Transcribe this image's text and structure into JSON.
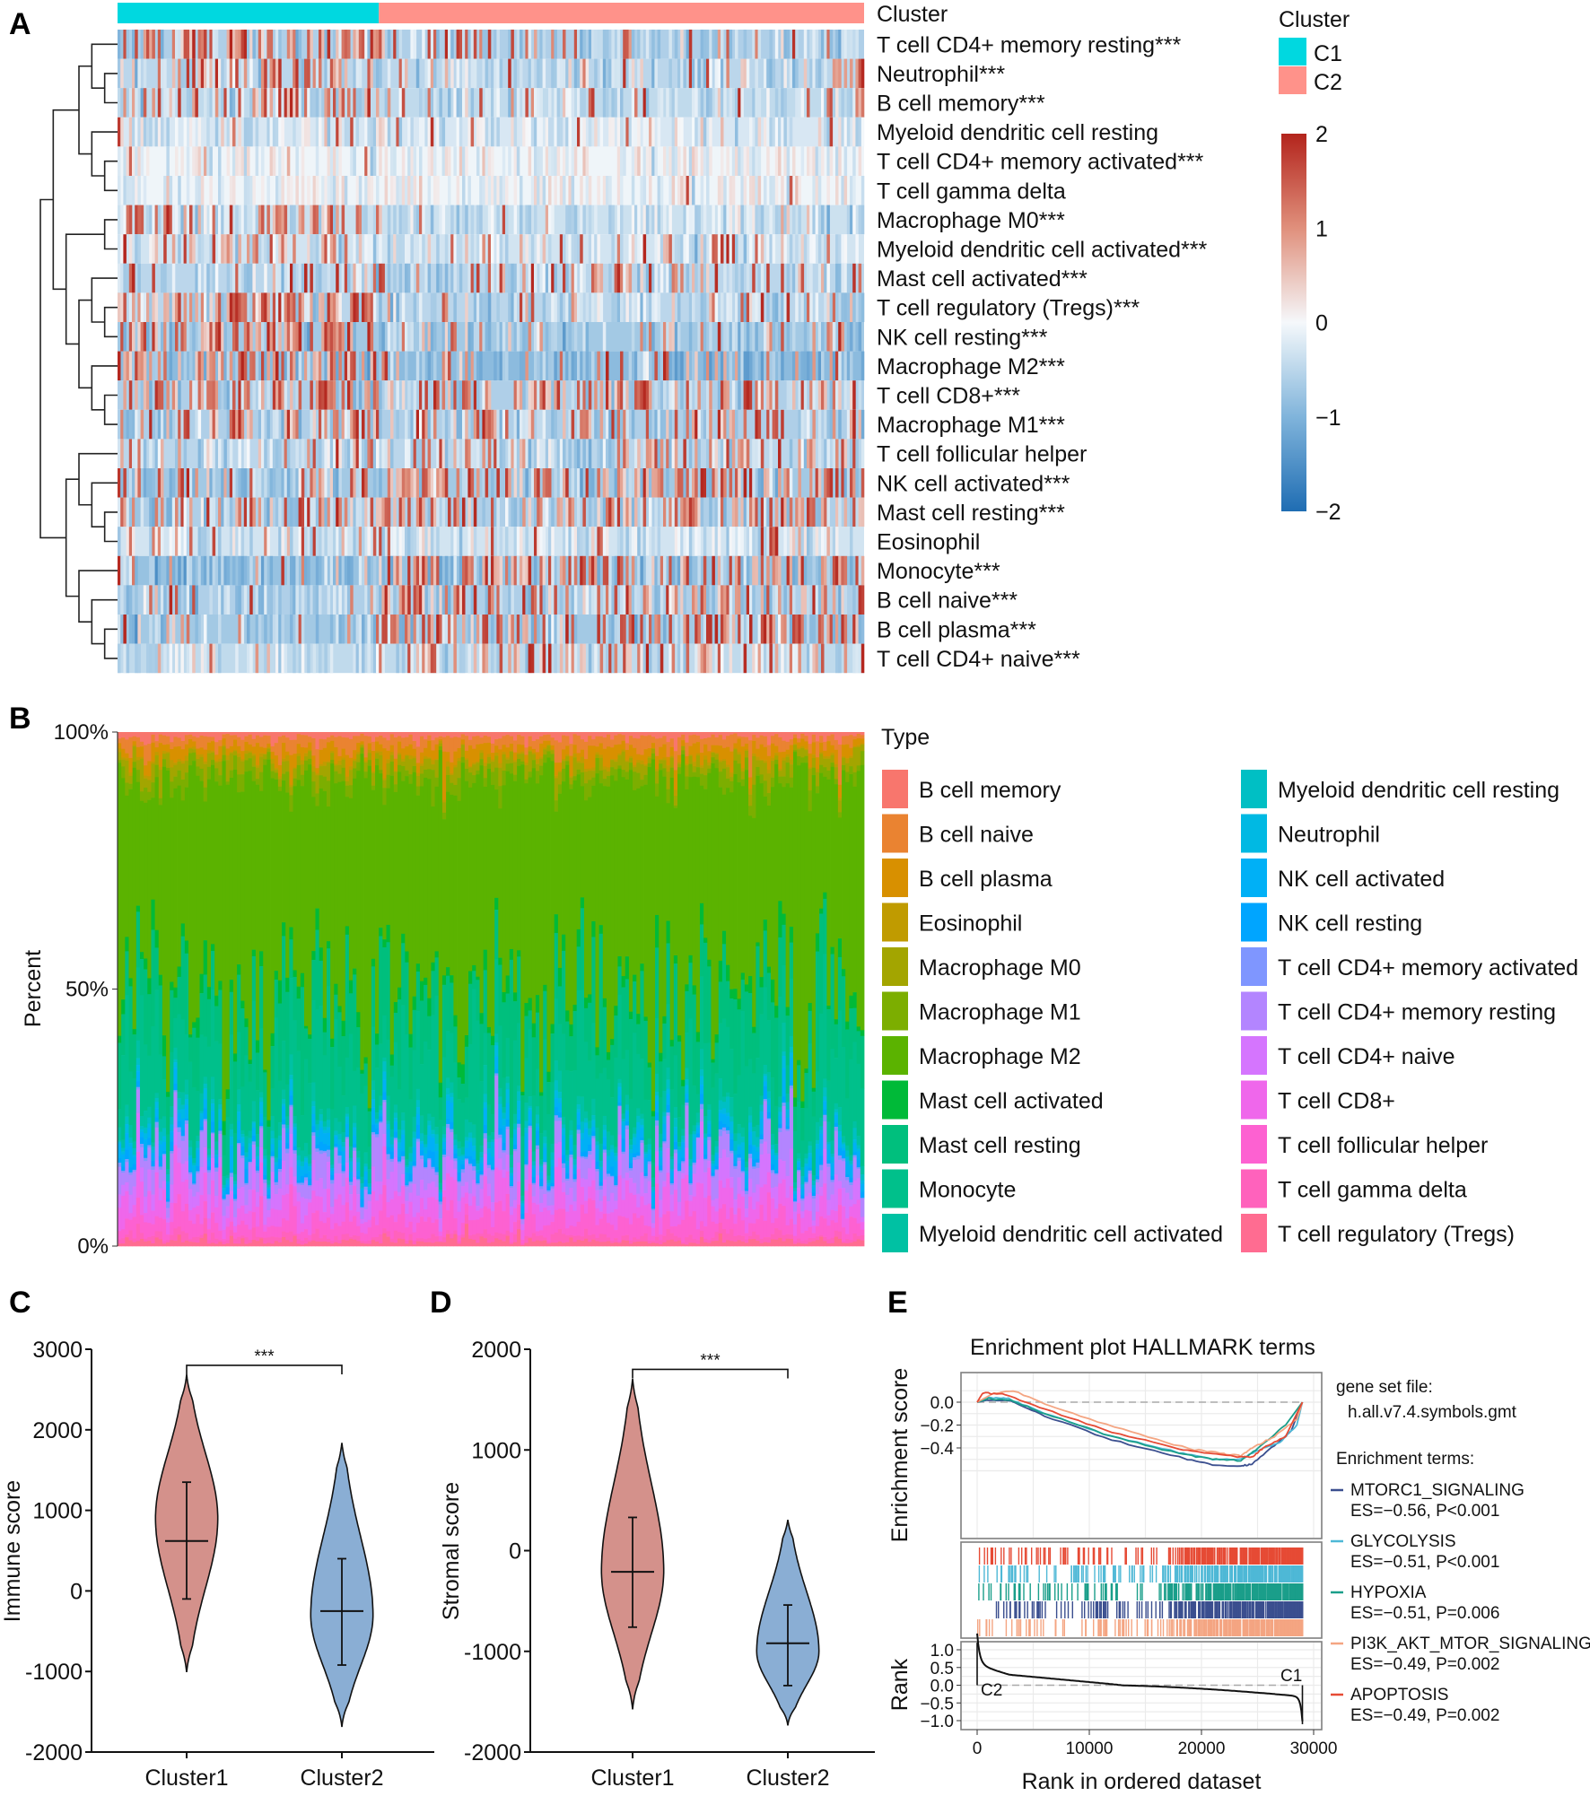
{
  "panel_labels": {
    "a": "A",
    "b": "B",
    "c": "C",
    "d": "D",
    "e": "E"
  },
  "chart_data": [
    {
      "panel": "A",
      "type": "heatmap",
      "annotation_title": "Cluster",
      "legend_title": "Cluster",
      "clusters": [
        {
          "name": "C1",
          "color": "#00d8e0",
          "fraction": 0.35
        },
        {
          "name": "C2",
          "color": "#ff928a",
          "fraction": 0.65
        }
      ],
      "n_samples": 260,
      "colorbar": {
        "range": [
          -2,
          2
        ],
        "ticks": [
          "2",
          "1",
          "0",
          "−1",
          "−2"
        ],
        "tick_values": [
          2,
          1,
          0,
          -1,
          -2
        ]
      },
      "rows": [
        {
          "label": "T cell CD4+ memory resting***",
          "c1_high": 0.5,
          "c2_high": 0.15,
          "base": -0.6
        },
        {
          "label": "Neutrophil***",
          "c1_high": 0.4,
          "c2_high": 0.12,
          "base": -0.5
        },
        {
          "label": "B cell memory***",
          "c1_high": 0.35,
          "c2_high": 0.1,
          "base": -0.45
        },
        {
          "label": "Myeloid dendritic cell resting",
          "c1_high": 0.08,
          "c2_high": 0.05,
          "base": -0.25
        },
        {
          "label": "T cell CD4+ memory activated***",
          "c1_high": 0.04,
          "c2_high": 0.005,
          "base": -0.05
        },
        {
          "label": "T cell gamma delta",
          "c1_high": 0.03,
          "c2_high": 0.005,
          "base": -0.05
        },
        {
          "label": "Macrophage M0***",
          "c1_high": 0.45,
          "c2_high": 0.05,
          "base": -0.35
        },
        {
          "label": "Myeloid dendritic cell activated***",
          "c1_high": 0.35,
          "c2_high": 0.12,
          "base": -0.3
        },
        {
          "label": "Mast cell activated***",
          "c1_high": 0.15,
          "c2_high": 0.2,
          "base": -0.5
        },
        {
          "label": "T cell regulatory (Tregs)***",
          "c1_high": 0.6,
          "c2_high": 0.12,
          "base": -0.5
        },
        {
          "label": "NK cell resting***",
          "c1_high": 0.6,
          "c2_high": 0.15,
          "base": -0.7
        },
        {
          "label": "Macrophage M2***",
          "c1_high": 0.55,
          "c2_high": 0.15,
          "base": -0.9
        },
        {
          "label": "T cell CD8+***",
          "c1_high": 0.45,
          "c2_high": 0.3,
          "base": -0.6
        },
        {
          "label": "Macrophage M1***",
          "c1_high": 0.45,
          "c2_high": 0.3,
          "base": -0.6
        },
        {
          "label": "T cell follicular helper",
          "c1_high": 0.2,
          "c2_high": 0.25,
          "base": -0.5
        },
        {
          "label": "NK cell activated***",
          "c1_high": 0.25,
          "c2_high": 0.45,
          "base": -0.7
        },
        {
          "label": "Mast cell resting***",
          "c1_high": 0.3,
          "c2_high": 0.45,
          "base": -0.6
        },
        {
          "label": "Eosinophil",
          "c1_high": 0.1,
          "c2_high": 0.1,
          "base": -0.3
        },
        {
          "label": "Monocyte***",
          "c1_high": 0.15,
          "c2_high": 0.45,
          "base": -0.8
        },
        {
          "label": "B cell naive***",
          "c1_high": 0.12,
          "c2_high": 0.4,
          "base": -0.6
        },
        {
          "label": "B cell plasma***",
          "c1_high": 0.15,
          "c2_high": 0.45,
          "base": -0.7
        },
        {
          "label": "T cell CD4+ naive***",
          "c1_high": 0.05,
          "c2_high": 0.35,
          "base": -0.45
        }
      ],
      "dendrogram": [
        [
          [
            [
              0,
              [
                1,
                2
              ]
            ],
            [
              3,
              [
                4,
                5
              ]
            ]
          ],
          [
            [
              6,
              7
            ],
            [
              [
                8,
                [
                  9,
                  10
                ]
              ],
              [
                11,
                [
                  12,
                  13
                ]
              ]
            ]
          ]
        ],
        [
          [
            14,
            [
              15,
              [
                16,
                17
              ]
            ]
          ],
          [
            18,
            [
              19,
              [
                20,
                21
              ]
            ]
          ]
        ]
      ]
    },
    {
      "panel": "B",
      "type": "bar",
      "stacked": true,
      "ylabel": "Percent",
      "yticks": [
        "100%",
        "50%",
        "0%"
      ],
      "legend_title": "Type",
      "n_samples": 200,
      "categories": [
        {
          "name": "B cell memory",
          "color": "#f8766d",
          "mean": 0.01
        },
        {
          "name": "B cell naive",
          "color": "#ea8331",
          "mean": 0.02
        },
        {
          "name": "B cell plasma",
          "color": "#d89000",
          "mean": 0.02
        },
        {
          "name": "Eosinophil",
          "color": "#c09b00",
          "mean": 0.005
        },
        {
          "name": "Macrophage M0",
          "color": "#a3a500",
          "mean": 0.02
        },
        {
          "name": "Macrophage M1",
          "color": "#7cae00",
          "mean": 0.02
        },
        {
          "name": "Macrophage M2",
          "color": "#5bb300",
          "mean": 0.43
        },
        {
          "name": "Mast cell activated",
          "color": "#00ba38",
          "mean": 0.02
        },
        {
          "name": "Mast cell resting",
          "color": "#00bf7d",
          "mean": 0.1
        },
        {
          "name": "Monocyte",
          "color": "#00c08b",
          "mean": 0.12
        },
        {
          "name": "Myeloid dendritic cell activated",
          "color": "#00c1a3",
          "mean": 0.02
        },
        {
          "name": "Myeloid dendritic cell resting",
          "color": "#00bfc4",
          "mean": 0.01
        },
        {
          "name": "Neutrophil",
          "color": "#00b9e3",
          "mean": 0.01
        },
        {
          "name": "NK cell activated",
          "color": "#00b0f6",
          "mean": 0.02
        },
        {
          "name": "NK cell resting",
          "color": "#00a5ff",
          "mean": 0.01
        },
        {
          "name": "T cell CD4+ memory activated",
          "color": "#7f96ff",
          "mean": 0.005
        },
        {
          "name": "T cell CD4+ memory resting",
          "color": "#b385ff",
          "mean": 0.04
        },
        {
          "name": "T cell CD4+ naive",
          "color": "#d575fe",
          "mean": 0.03
        },
        {
          "name": "T cell CD8+",
          "color": "#ef67eb",
          "mean": 0.04
        },
        {
          "name": "T cell follicular helper",
          "color": "#fd61d1",
          "mean": 0.03
        },
        {
          "name": "T cell gamma delta",
          "color": "#ff62bc",
          "mean": 0.01
        },
        {
          "name": "T cell regulatory (Tregs)",
          "color": "#ff6c91",
          "mean": 0.01
        }
      ]
    },
    {
      "panel": "C",
      "type": "violin",
      "ylabel": "Immune score",
      "ylim": [
        -2000,
        3000
      ],
      "yticks": [
        "3000",
        "2000",
        "1000",
        "0",
        "-1000",
        "-2000"
      ],
      "ytick_values": [
        3000,
        2000,
        1000,
        0,
        -1000,
        -2000
      ],
      "significance": "***",
      "bracket_value": 2800,
      "groups": [
        {
          "name": "Cluster1",
          "color": "#d4918b",
          "min": -1000,
          "max": 2680,
          "mode": 900,
          "median": 620,
          "q_low": -100,
          "q_high": 1350
        },
        {
          "name": "Cluster2",
          "color": "#8aaed4",
          "min": -1680,
          "max": 1830,
          "mode": -300,
          "median": -250,
          "q_low": -920,
          "q_high": 400
        }
      ]
    },
    {
      "panel": "D",
      "type": "violin",
      "ylabel": "Stromal score",
      "ylim": [
        -2000,
        2000
      ],
      "yticks": [
        "2000",
        "1000",
        "0",
        "-1000",
        "-2000"
      ],
      "ytick_values": [
        2000,
        1000,
        0,
        -1000,
        -2000
      ],
      "significance": "***",
      "bracket_value": 1800,
      "groups": [
        {
          "name": "Cluster1",
          "color": "#d4918b",
          "min": -1570,
          "max": 1700,
          "mode": -200,
          "median": -210,
          "q_low": -760,
          "q_high": 330
        },
        {
          "name": "Cluster2",
          "color": "#8aaed4",
          "min": -1730,
          "max": 300,
          "mode": -1000,
          "median": -920,
          "q_low": -1340,
          "q_high": -540
        }
      ]
    },
    {
      "panel": "E",
      "type": "line",
      "title": "Enrichment plot HALLMARK terms",
      "xlabel": "Rank in ordered dataset",
      "ylabel": "Enrichment score",
      "rank_ylabel": "Rank",
      "xlim": [
        0,
        29000
      ],
      "xticks": [
        "0",
        "10000",
        "20000",
        "30000"
      ],
      "xtick_values": [
        0,
        10000,
        20000,
        30000
      ],
      "yticks": [
        "0.0",
        "−0.2",
        "−0.4"
      ],
      "ytick_values": [
        0,
        -0.2,
        -0.4
      ],
      "rank_yticks": [
        "1.0",
        "0.5",
        "0.0",
        "−0.5",
        "−1.0"
      ],
      "rank_ytick_values": [
        1,
        0.5,
        0,
        -0.5,
        -1
      ],
      "rank_labels": {
        "left": "C2",
        "right": "C1"
      },
      "legend": {
        "gene_set_label": "gene set file:",
        "gene_set_file": "h.all.v7.4.symbols.gmt",
        "terms_label": "Enrichment terms:"
      },
      "series": [
        {
          "name": "MTORC1_SIGNALING",
          "stats": "ES=−0.56,  P<0.001",
          "color": "#3b4f8f",
          "points": [
            [
              0,
              0
            ],
            [
              1000,
              0.02
            ],
            [
              3000,
              0.01
            ],
            [
              6000,
              -0.12
            ],
            [
              12000,
              -0.33
            ],
            [
              18000,
              -0.48
            ],
            [
              21000,
              -0.55
            ],
            [
              23500,
              -0.56
            ],
            [
              24500,
              -0.54
            ],
            [
              26500,
              -0.38
            ],
            [
              28000,
              -0.25
            ],
            [
              29000,
              0
            ]
          ]
        },
        {
          "name": "GLYCOLYSIS",
          "stats": "ES=−0.51,  P<0.001",
          "color": "#4eb8d6",
          "points": [
            [
              0,
              0
            ],
            [
              1000,
              0.04
            ],
            [
              2800,
              0.03
            ],
            [
              6000,
              -0.1
            ],
            [
              12000,
              -0.3
            ],
            [
              18000,
              -0.44
            ],
            [
              21000,
              -0.5
            ],
            [
              23500,
              -0.5
            ],
            [
              25000,
              -0.42
            ],
            [
              27000,
              -0.35
            ],
            [
              28500,
              -0.2
            ],
            [
              29000,
              0
            ]
          ]
        },
        {
          "name": "HYPOXIA",
          "stats": "ES=−0.51,  P=0.006",
          "color": "#1a9e8a",
          "points": [
            [
              0,
              0
            ],
            [
              1000,
              0.03
            ],
            [
              3000,
              0.02
            ],
            [
              6000,
              -0.1
            ],
            [
              12000,
              -0.3
            ],
            [
              18000,
              -0.45
            ],
            [
              21000,
              -0.5
            ],
            [
              23500,
              -0.51
            ],
            [
              25000,
              -0.41
            ],
            [
              27500,
              -0.2
            ],
            [
              29000,
              0
            ]
          ]
        },
        {
          "name": "PI3K_AKT_MTOR_SIGNALING",
          "stats": "ES=−0.49,  P=0.002",
          "color": "#f4a582",
          "points": [
            [
              0,
              0
            ],
            [
              1500,
              0.08
            ],
            [
              3200,
              0.1
            ],
            [
              7000,
              -0.05
            ],
            [
              13000,
              -0.24
            ],
            [
              19000,
              -0.41
            ],
            [
              22000,
              -0.45
            ],
            [
              23500,
              -0.47
            ],
            [
              24500,
              -0.4
            ],
            [
              26500,
              -0.3
            ],
            [
              28500,
              -0.15
            ],
            [
              29000,
              0
            ]
          ]
        },
        {
          "name": "APOPTOSIS",
          "stats": "ES=−0.49,  P=0.002",
          "color": "#e64b35",
          "points": [
            [
              0,
              0
            ],
            [
              500,
              0.08
            ],
            [
              2500,
              0.07
            ],
            [
              6000,
              -0.06
            ],
            [
              12000,
              -0.26
            ],
            [
              18000,
              -0.41
            ],
            [
              21000,
              -0.45
            ],
            [
              23500,
              -0.48
            ],
            [
              24500,
              -0.48
            ],
            [
              25500,
              -0.4
            ],
            [
              27500,
              -0.3
            ],
            [
              29000,
              0
            ]
          ]
        }
      ],
      "hit_row_order": [
        4,
        1,
        2,
        0,
        3
      ]
    }
  ]
}
